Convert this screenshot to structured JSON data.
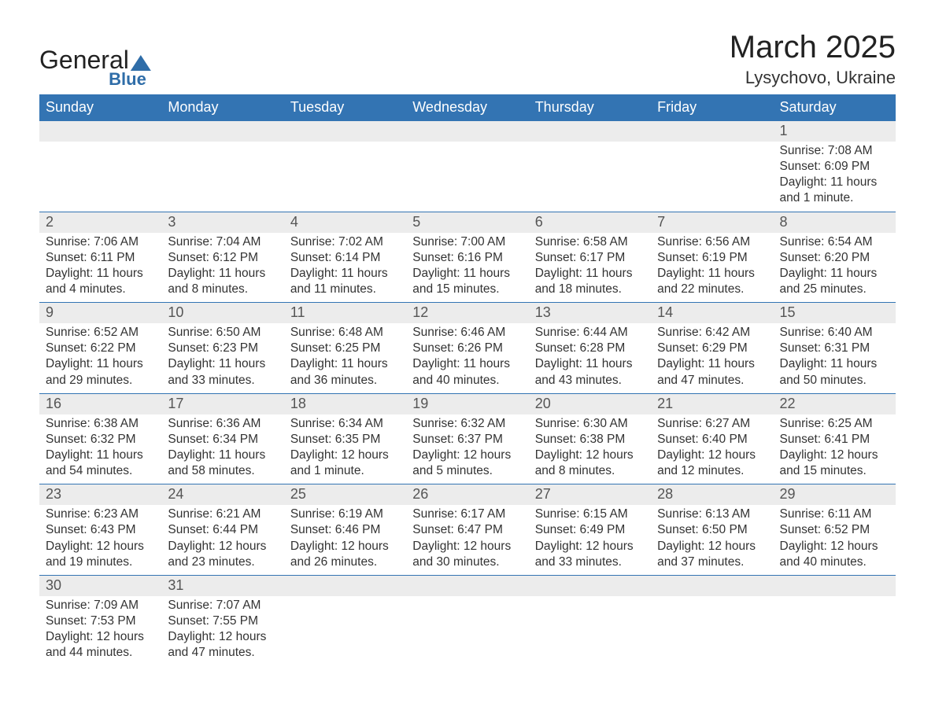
{
  "logo": {
    "text1": "General",
    "text2": "Blue"
  },
  "title": "March 2025",
  "location": "Lysychovo, Ukraine",
  "colors": {
    "header_bg": "#3374b3",
    "header_text": "#ffffff",
    "daynum_bg": "#ececec",
    "row_border": "#3374b3",
    "logo_accent": "#2f6da8"
  },
  "weekdays": [
    "Sunday",
    "Monday",
    "Tuesday",
    "Wednesday",
    "Thursday",
    "Friday",
    "Saturday"
  ],
  "weeks": [
    [
      null,
      null,
      null,
      null,
      null,
      null,
      {
        "n": "1",
        "sr": "7:08 AM",
        "ss": "6:09 PM",
        "dl": "11 hours and 1 minute."
      }
    ],
    [
      {
        "n": "2",
        "sr": "7:06 AM",
        "ss": "6:11 PM",
        "dl": "11 hours and 4 minutes."
      },
      {
        "n": "3",
        "sr": "7:04 AM",
        "ss": "6:12 PM",
        "dl": "11 hours and 8 minutes."
      },
      {
        "n": "4",
        "sr": "7:02 AM",
        "ss": "6:14 PM",
        "dl": "11 hours and 11 minutes."
      },
      {
        "n": "5",
        "sr": "7:00 AM",
        "ss": "6:16 PM",
        "dl": "11 hours and 15 minutes."
      },
      {
        "n": "6",
        "sr": "6:58 AM",
        "ss": "6:17 PM",
        "dl": "11 hours and 18 minutes."
      },
      {
        "n": "7",
        "sr": "6:56 AM",
        "ss": "6:19 PM",
        "dl": "11 hours and 22 minutes."
      },
      {
        "n": "8",
        "sr": "6:54 AM",
        "ss": "6:20 PM",
        "dl": "11 hours and 25 minutes."
      }
    ],
    [
      {
        "n": "9",
        "sr": "6:52 AM",
        "ss": "6:22 PM",
        "dl": "11 hours and 29 minutes."
      },
      {
        "n": "10",
        "sr": "6:50 AM",
        "ss": "6:23 PM",
        "dl": "11 hours and 33 minutes."
      },
      {
        "n": "11",
        "sr": "6:48 AM",
        "ss": "6:25 PM",
        "dl": "11 hours and 36 minutes."
      },
      {
        "n": "12",
        "sr": "6:46 AM",
        "ss": "6:26 PM",
        "dl": "11 hours and 40 minutes."
      },
      {
        "n": "13",
        "sr": "6:44 AM",
        "ss": "6:28 PM",
        "dl": "11 hours and 43 minutes."
      },
      {
        "n": "14",
        "sr": "6:42 AM",
        "ss": "6:29 PM",
        "dl": "11 hours and 47 minutes."
      },
      {
        "n": "15",
        "sr": "6:40 AM",
        "ss": "6:31 PM",
        "dl": "11 hours and 50 minutes."
      }
    ],
    [
      {
        "n": "16",
        "sr": "6:38 AM",
        "ss": "6:32 PM",
        "dl": "11 hours and 54 minutes."
      },
      {
        "n": "17",
        "sr": "6:36 AM",
        "ss": "6:34 PM",
        "dl": "11 hours and 58 minutes."
      },
      {
        "n": "18",
        "sr": "6:34 AM",
        "ss": "6:35 PM",
        "dl": "12 hours and 1 minute."
      },
      {
        "n": "19",
        "sr": "6:32 AM",
        "ss": "6:37 PM",
        "dl": "12 hours and 5 minutes."
      },
      {
        "n": "20",
        "sr": "6:30 AM",
        "ss": "6:38 PM",
        "dl": "12 hours and 8 minutes."
      },
      {
        "n": "21",
        "sr": "6:27 AM",
        "ss": "6:40 PM",
        "dl": "12 hours and 12 minutes."
      },
      {
        "n": "22",
        "sr": "6:25 AM",
        "ss": "6:41 PM",
        "dl": "12 hours and 15 minutes."
      }
    ],
    [
      {
        "n": "23",
        "sr": "6:23 AM",
        "ss": "6:43 PM",
        "dl": "12 hours and 19 minutes."
      },
      {
        "n": "24",
        "sr": "6:21 AM",
        "ss": "6:44 PM",
        "dl": "12 hours and 23 minutes."
      },
      {
        "n": "25",
        "sr": "6:19 AM",
        "ss": "6:46 PM",
        "dl": "12 hours and 26 minutes."
      },
      {
        "n": "26",
        "sr": "6:17 AM",
        "ss": "6:47 PM",
        "dl": "12 hours and 30 minutes."
      },
      {
        "n": "27",
        "sr": "6:15 AM",
        "ss": "6:49 PM",
        "dl": "12 hours and 33 minutes."
      },
      {
        "n": "28",
        "sr": "6:13 AM",
        "ss": "6:50 PM",
        "dl": "12 hours and 37 minutes."
      },
      {
        "n": "29",
        "sr": "6:11 AM",
        "ss": "6:52 PM",
        "dl": "12 hours and 40 minutes."
      }
    ],
    [
      {
        "n": "30",
        "sr": "7:09 AM",
        "ss": "7:53 PM",
        "dl": "12 hours and 44 minutes."
      },
      {
        "n": "31",
        "sr": "7:07 AM",
        "ss": "7:55 PM",
        "dl": "12 hours and 47 minutes."
      },
      null,
      null,
      null,
      null,
      null
    ]
  ],
  "labels": {
    "sunrise": "Sunrise: ",
    "sunset": "Sunset: ",
    "daylight": "Daylight: "
  }
}
